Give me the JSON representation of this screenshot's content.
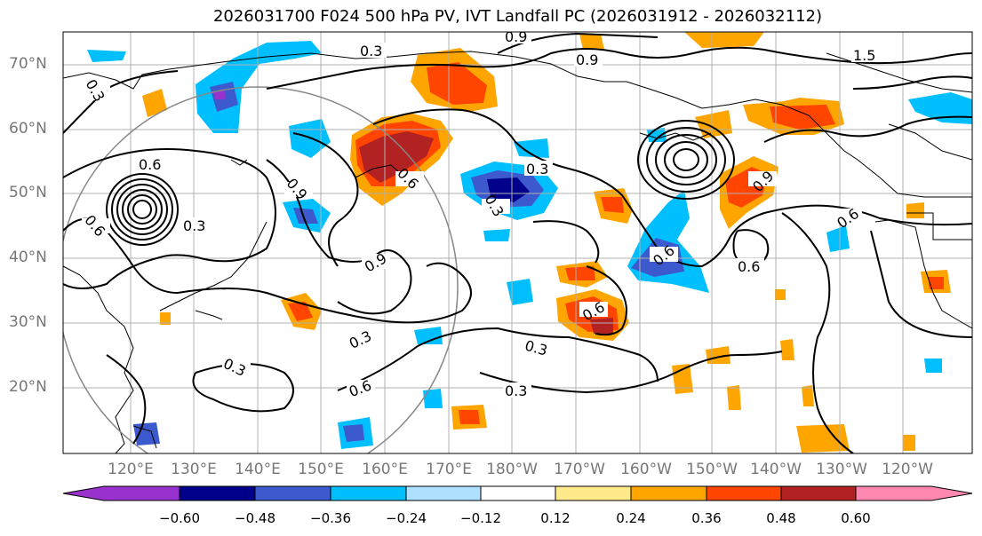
{
  "title": "2026031700 F024 500 hPa PV, IVT Landfall PC (2026031912 - 2026032112)",
  "latitude_labels": [
    "70°N",
    "60°N",
    "50°N",
    "40°N",
    "30°N",
    "20°N"
  ],
  "longitude_labels": [
    "120°E",
    "130°E",
    "140°E",
    "150°E",
    "160°E",
    "170°E",
    "180°W",
    "170°W",
    "160°W",
    "150°W",
    "140°W",
    "130°W",
    "120°W"
  ],
  "colorbar": {
    "colors": [
      "#9932cc",
      "#00008b",
      "#3c5acd",
      "#00bfff",
      "#b0e0ff",
      "#ffffff",
      "#ffe98a",
      "#ffa500",
      "#ff4500",
      "#b22222",
      "#ff88b0"
    ],
    "tick_labels": [
      "−0.60",
      "−0.48",
      "−0.36",
      "−0.24",
      "−0.12",
      "0.12",
      "0.24",
      "0.36",
      "0.48",
      "0.60"
    ]
  },
  "contour_labels": [
    "0.9",
    "0.3",
    "0.9",
    "1.5",
    "0.6",
    "0.6",
    "0.3",
    "0.9",
    "0.3",
    "0.6",
    "0.3",
    "0.9",
    "0.6",
    "0.6",
    "0.3",
    "0.3",
    "0.6",
    "0.3",
    "0.3",
    "0.6",
    "0.3",
    "0.6",
    "0.9"
  ],
  "map_features": {
    "land_outline": "coastlines",
    "gridlines": "10° graticule"
  }
}
